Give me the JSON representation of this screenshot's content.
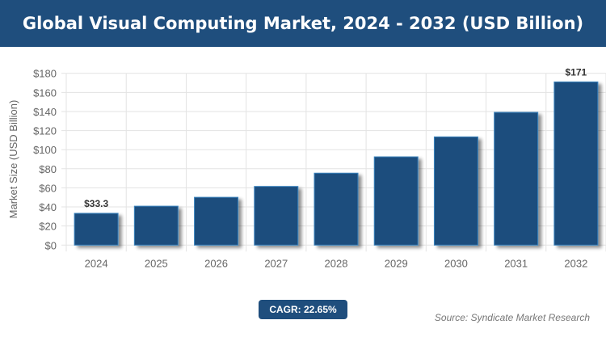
{
  "chart_data": {
    "type": "bar",
    "title": "Global Visual Computing Market, 2024 - 2032 (USD Billion)",
    "ylabel": "Market Size (USD Billion)",
    "xlabel": "",
    "categories": [
      "2024",
      "2025",
      "2026",
      "2027",
      "2028",
      "2029",
      "2030",
      "2031",
      "2032"
    ],
    "values": [
      33.3,
      40.8,
      50.1,
      61.5,
      75.4,
      92.5,
      113.4,
      139.1,
      171
    ],
    "data_labels": {
      "2024": "$33.3",
      "2032": "$171"
    },
    "ylim": [
      0,
      180
    ],
    "yticks": [
      0,
      20,
      40,
      60,
      80,
      100,
      120,
      140,
      160,
      180
    ],
    "ytick_labels": [
      "$0",
      "$20",
      "$40",
      "$60",
      "$80",
      "$100",
      "$120",
      "$140",
      "$160",
      "$180"
    ],
    "grid": true,
    "bar_color": "#1f4e7d",
    "bar_border_color": "#3a85c0"
  },
  "cagr_label": "CAGR: 22.65%",
  "source": "Source: Syndicate Market Research"
}
